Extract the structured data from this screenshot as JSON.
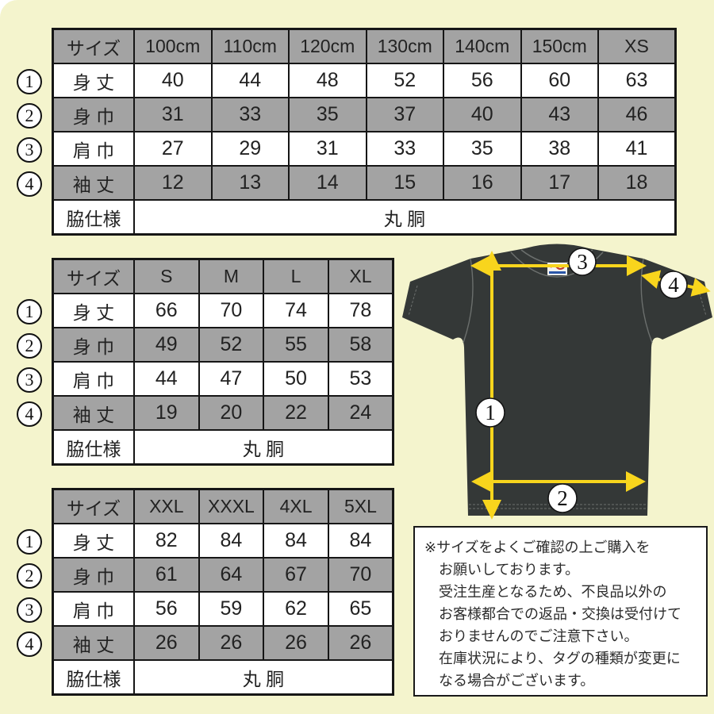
{
  "colors": {
    "background_yellow": "#f4f4cd",
    "table_gray": "#a3a3a3",
    "arrow_yellow": "#f8d51d",
    "shirt_dark": "#343837",
    "border_black": "#161616"
  },
  "tables": [
    {
      "name": "kids-sizes",
      "header": [
        "サイズ",
        "100cm",
        "110cm",
        "120cm",
        "130cm",
        "140cm",
        "150cm",
        "XS"
      ],
      "rows": [
        {
          "num": "1",
          "label": "身 丈",
          "values": [
            "40",
            "44",
            "48",
            "52",
            "56",
            "60",
            "63"
          ]
        },
        {
          "num": "2",
          "label": "身 巾",
          "values": [
            "31",
            "33",
            "35",
            "37",
            "40",
            "43",
            "46"
          ]
        },
        {
          "num": "3",
          "label": "肩 巾",
          "values": [
            "27",
            "29",
            "31",
            "33",
            "35",
            "38",
            "41"
          ]
        },
        {
          "num": "4",
          "label": "袖 丈",
          "values": [
            "12",
            "13",
            "14",
            "15",
            "16",
            "17",
            "18"
          ]
        }
      ],
      "footer_label": "脇仕様",
      "footer_value": "丸 胴"
    },
    {
      "name": "adult-sizes",
      "header": [
        "サイズ",
        "S",
        "M",
        "L",
        "XL"
      ],
      "rows": [
        {
          "num": "1",
          "label": "身 丈",
          "values": [
            "66",
            "70",
            "74",
            "78"
          ]
        },
        {
          "num": "2",
          "label": "身 巾",
          "values": [
            "49",
            "52",
            "55",
            "58"
          ]
        },
        {
          "num": "3",
          "label": "肩 巾",
          "values": [
            "44",
            "47",
            "50",
            "53"
          ]
        },
        {
          "num": "4",
          "label": "袖 丈",
          "values": [
            "19",
            "20",
            "22",
            "24"
          ]
        }
      ],
      "footer_label": "脇仕様",
      "footer_value": "丸 胴"
    },
    {
      "name": "big-sizes",
      "header": [
        "サイズ",
        "XXL",
        "XXXL",
        "4XL",
        "5XL"
      ],
      "rows": [
        {
          "num": "1",
          "label": "身 丈",
          "values": [
            "82",
            "84",
            "84",
            "84"
          ]
        },
        {
          "num": "2",
          "label": "身 巾",
          "values": [
            "61",
            "64",
            "67",
            "70"
          ]
        },
        {
          "num": "3",
          "label": "肩 巾",
          "values": [
            "56",
            "59",
            "62",
            "65"
          ]
        },
        {
          "num": "4",
          "label": "袖 丈",
          "values": [
            "26",
            "26",
            "26",
            "26"
          ]
        }
      ],
      "footer_label": "脇仕様",
      "footer_value": "丸 胴"
    }
  ],
  "shirt": {
    "markers": [
      {
        "num": "1",
        "meaning": "身丈"
      },
      {
        "num": "2",
        "meaning": "身巾"
      },
      {
        "num": "3",
        "meaning": "肩巾"
      },
      {
        "num": "4",
        "meaning": "袖丈"
      }
    ]
  },
  "note": {
    "lines": [
      "※サイズをよくご確認の上ご購入を",
      "お願いしております。",
      "受注生産となるため、不良品以外の",
      "お客様都合での返品・交換は受付けて",
      "おりませんのでご注意下さい。",
      "在庫状況により、タグの種類が変更に",
      "なる場合がございます。"
    ]
  }
}
